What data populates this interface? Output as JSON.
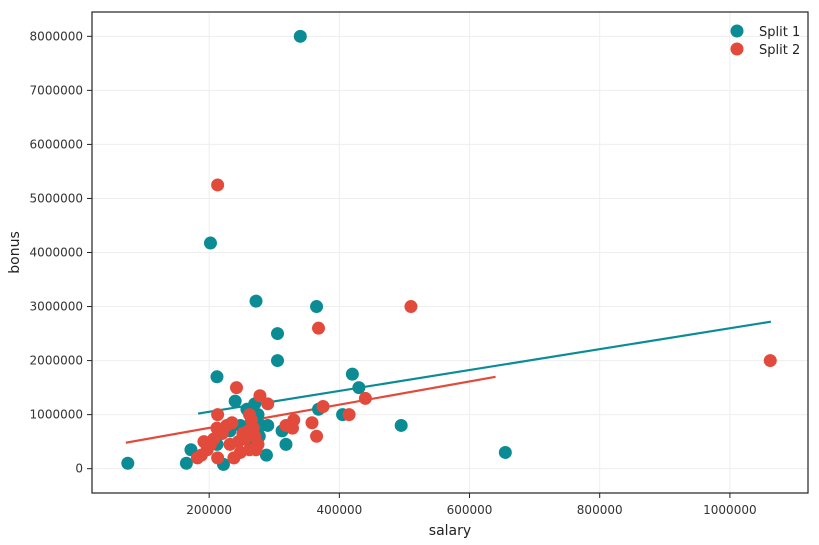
{
  "chart_data": {
    "type": "scatter",
    "title": "",
    "xlabel": "salary",
    "ylabel": "bonus",
    "xlim": [
      20000,
      1120000
    ],
    "ylim": [
      -450000,
      8450000
    ],
    "xticks": [
      200000,
      400000,
      600000,
      800000,
      1000000
    ],
    "xtick_labels": [
      "200000",
      "400000",
      "600000",
      "800000",
      "1000000"
    ],
    "yticks": [
      0,
      1000000,
      2000000,
      3000000,
      4000000,
      5000000,
      6000000,
      7000000,
      8000000
    ],
    "ytick_labels": [
      "0",
      "1000000",
      "2000000",
      "3000000",
      "4000000",
      "5000000",
      "6000000",
      "7000000",
      "8000000"
    ],
    "grid": true,
    "legend_position": "top-right",
    "series": [
      {
        "name": "Split 1",
        "color": "#0b8c94",
        "points": [
          [
            75000,
            100000
          ],
          [
            165000,
            100000
          ],
          [
            172000,
            350000
          ],
          [
            202000,
            4175000
          ],
          [
            212000,
            1700000
          ],
          [
            212000,
            450000
          ],
          [
            222000,
            80000
          ],
          [
            232000,
            700000
          ],
          [
            240000,
            1250000
          ],
          [
            248000,
            800000
          ],
          [
            252000,
            600000
          ],
          [
            258000,
            1100000
          ],
          [
            262000,
            500000
          ],
          [
            265000,
            900000
          ],
          [
            270000,
            1200000
          ],
          [
            272000,
            3100000
          ],
          [
            275000,
            1000000
          ],
          [
            277000,
            600000
          ],
          [
            280000,
            800000
          ],
          [
            288000,
            250000
          ],
          [
            290000,
            800000
          ],
          [
            305000,
            2500000
          ],
          [
            305000,
            2000000
          ],
          [
            312000,
            700000
          ],
          [
            318000,
            450000
          ],
          [
            340000,
            8000000
          ],
          [
            365000,
            3000000
          ],
          [
            368000,
            1100000
          ],
          [
            405000,
            1000000
          ],
          [
            420000,
            1750000
          ],
          [
            430000,
            1500000
          ],
          [
            495000,
            800000
          ],
          [
            655000,
            300000
          ]
        ],
        "fit_line": [
          [
            183000,
            1020000
          ],
          [
            1063000,
            2720000
          ]
        ]
      },
      {
        "name": "Split 2",
        "color": "#e24a3b",
        "points": [
          [
            182000,
            200000
          ],
          [
            188000,
            250000
          ],
          [
            192000,
            500000
          ],
          [
            197000,
            350000
          ],
          [
            202000,
            450000
          ],
          [
            207000,
            550000
          ],
          [
            212000,
            750000
          ],
          [
            213000,
            5250000
          ],
          [
            213000,
            1000000
          ],
          [
            213000,
            200000
          ],
          [
            220000,
            650000
          ],
          [
            227000,
            800000
          ],
          [
            232000,
            450000
          ],
          [
            235000,
            850000
          ],
          [
            238000,
            200000
          ],
          [
            242000,
            1500000
          ],
          [
            245000,
            500000
          ],
          [
            248000,
            300000
          ],
          [
            252000,
            650000
          ],
          [
            255000,
            550000
          ],
          [
            260000,
            700000
          ],
          [
            262000,
            1000000
          ],
          [
            262000,
            350000
          ],
          [
            265000,
            900000
          ],
          [
            268000,
            750000
          ],
          [
            270000,
            600000
          ],
          [
            272000,
            350000
          ],
          [
            275000,
            450000
          ],
          [
            278000,
            1350000
          ],
          [
            290000,
            1200000
          ],
          [
            318000,
            800000
          ],
          [
            328000,
            750000
          ],
          [
            330000,
            900000
          ],
          [
            358000,
            850000
          ],
          [
            365000,
            600000
          ],
          [
            368000,
            2600000
          ],
          [
            375000,
            1150000
          ],
          [
            415000,
            1000000
          ],
          [
            440000,
            1300000
          ],
          [
            510000,
            3000000
          ],
          [
            1062000,
            2000000
          ]
        ],
        "fit_line": [
          [
            72000,
            480000
          ],
          [
            640000,
            1700000
          ]
        ]
      }
    ]
  }
}
